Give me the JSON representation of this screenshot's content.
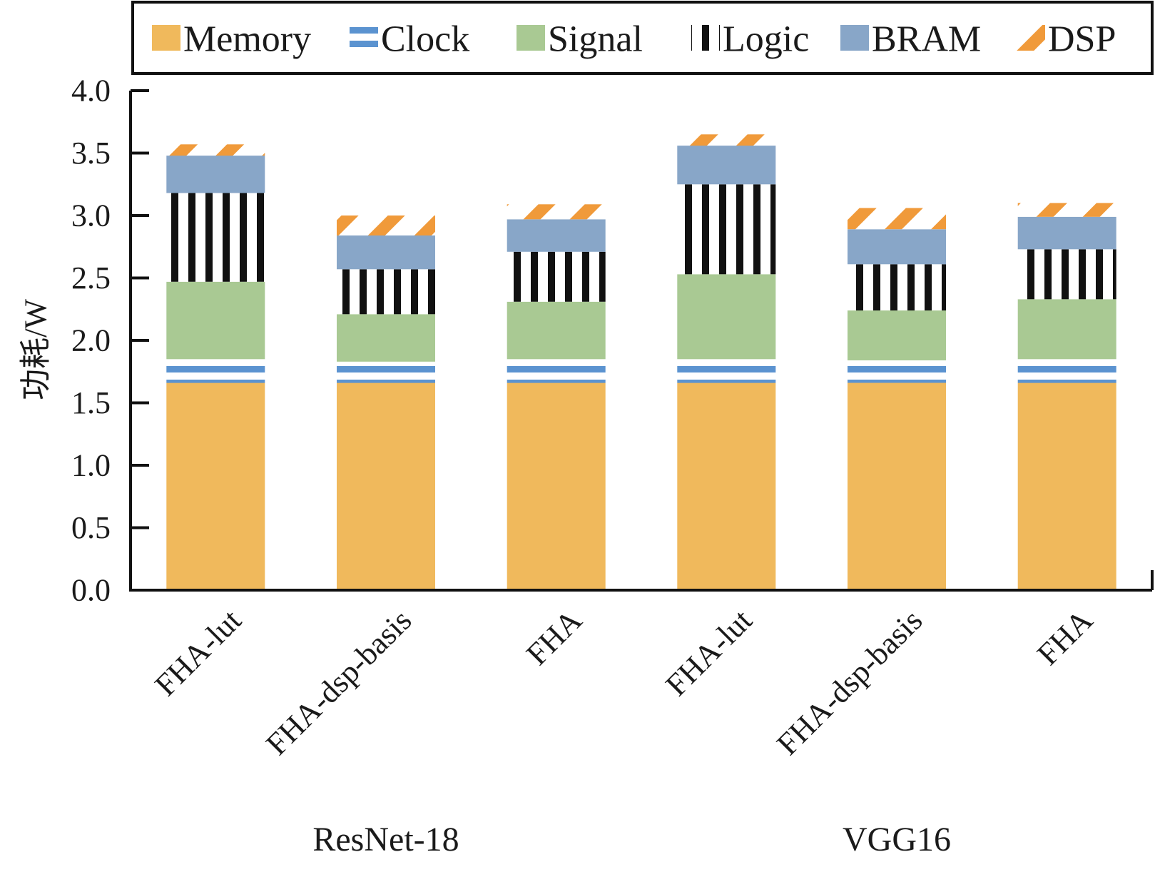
{
  "chart_data": {
    "type": "bar",
    "stacked": true,
    "title": "",
    "xlabel": "",
    "ylabel": "功耗/W",
    "ylim": [
      0,
      4.0
    ],
    "yticks": [
      "0.0",
      "0.5",
      "1.0",
      "1.5",
      "2.0",
      "2.5",
      "3.0",
      "3.5",
      "4.0"
    ],
    "grid": false,
    "legend_position": "top",
    "categories": [
      "FHA-lut",
      "FHA-dsp-basis",
      "FHA",
      "FHA-lut",
      "FHA-dsp-basis",
      "FHA"
    ],
    "groups": [
      {
        "label": "ResNet-18",
        "categories": [
          0,
          1,
          2
        ]
      },
      {
        "label": "VGG16",
        "categories": [
          3,
          4,
          5
        ]
      }
    ],
    "series": [
      {
        "name": "Memory",
        "color": "#F0B95C",
        "pattern": "solid",
        "values": [
          1.66,
          1.66,
          1.66,
          1.66,
          1.66,
          1.66
        ]
      },
      {
        "name": "Clock",
        "color": "#5B93D0",
        "pattern": "horizontal-stripes",
        "values": [
          0.19,
          0.17,
          0.19,
          0.19,
          0.18,
          0.19
        ]
      },
      {
        "name": "Signal",
        "color": "#A9C993",
        "pattern": "solid",
        "values": [
          0.62,
          0.38,
          0.46,
          0.68,
          0.4,
          0.48
        ]
      },
      {
        "name": "Logic",
        "color": "#111111",
        "pattern": "vertical-stripes",
        "values": [
          0.71,
          0.36,
          0.4,
          0.72,
          0.37,
          0.4
        ]
      },
      {
        "name": "BRAM",
        "color": "#88A6C8",
        "pattern": "solid",
        "values": [
          0.3,
          0.27,
          0.26,
          0.31,
          0.28,
          0.26
        ]
      },
      {
        "name": "DSP",
        "color": "#F09A3A",
        "pattern": "diagonal-stripes",
        "values": [
          0.09,
          0.16,
          0.12,
          0.09,
          0.17,
          0.11
        ]
      }
    ]
  }
}
